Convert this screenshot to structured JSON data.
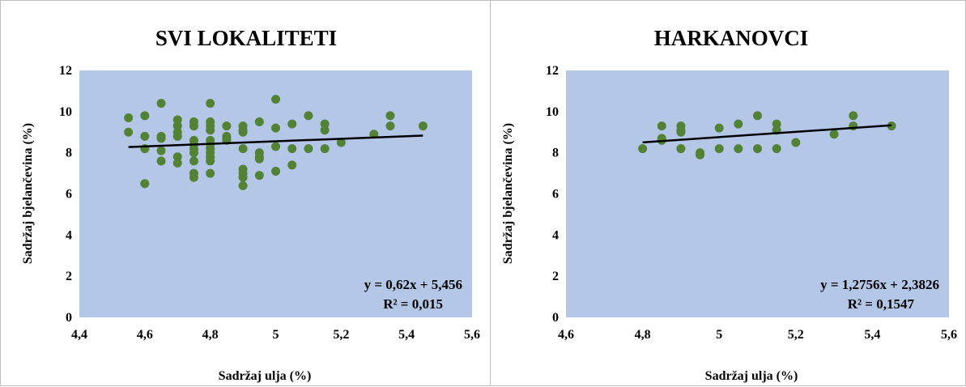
{
  "colors": {
    "plot_bg": "#b4c7e7",
    "point": "#538135",
    "trendline": "#000000"
  },
  "chart_data": [
    {
      "type": "scatter",
      "title": "SVI LOKALITETI",
      "xlabel": "Sadržaj ulja (%)",
      "ylabel": "Sadržaj bjelančevina (%)",
      "xlim": [
        4.4,
        5.6
      ],
      "ylim": [
        0,
        12
      ],
      "xticks": [
        "4,4",
        "4,6",
        "4,8",
        "5",
        "5,2",
        "5,4",
        "5,6"
      ],
      "yticks": [
        "0",
        "2",
        "4",
        "6",
        "8",
        "10",
        "12"
      ],
      "grid": false,
      "trendline": {
        "slope": 0.62,
        "intercept": 5.456,
        "x_range": [
          4.55,
          5.45
        ]
      },
      "equation": "y = 0,62x + 5,456",
      "r2": "R² = 0,015",
      "points": [
        [
          4.55,
          9.7
        ],
        [
          4.55,
          9.0
        ],
        [
          4.6,
          9.8
        ],
        [
          4.6,
          8.8
        ],
        [
          4.6,
          8.2
        ],
        [
          4.6,
          6.5
        ],
        [
          4.65,
          10.4
        ],
        [
          4.65,
          8.8
        ],
        [
          4.65,
          8.7
        ],
        [
          4.65,
          8.1
        ],
        [
          4.65,
          7.6
        ],
        [
          4.7,
          9.6
        ],
        [
          4.7,
          9.3
        ],
        [
          4.7,
          9.0
        ],
        [
          4.7,
          8.8
        ],
        [
          4.7,
          7.8
        ],
        [
          4.7,
          7.5
        ],
        [
          4.75,
          9.5
        ],
        [
          4.75,
          9.3
        ],
        [
          4.75,
          8.6
        ],
        [
          4.75,
          8.4
        ],
        [
          4.75,
          8.2
        ],
        [
          4.75,
          8.0
        ],
        [
          4.75,
          7.6
        ],
        [
          4.75,
          7.0
        ],
        [
          4.75,
          6.8
        ],
        [
          4.8,
          10.4
        ],
        [
          4.8,
          9.5
        ],
        [
          4.8,
          9.3
        ],
        [
          4.8,
          9.1
        ],
        [
          4.8,
          8.6
        ],
        [
          4.8,
          8.4
        ],
        [
          4.8,
          8.2
        ],
        [
          4.8,
          8.0
        ],
        [
          4.8,
          7.8
        ],
        [
          4.8,
          7.6
        ],
        [
          4.8,
          7.0
        ],
        [
          4.85,
          9.3
        ],
        [
          4.85,
          8.8
        ],
        [
          4.85,
          8.7
        ],
        [
          4.85,
          8.6
        ],
        [
          4.9,
          9.3
        ],
        [
          4.9,
          9.1
        ],
        [
          4.9,
          9.0
        ],
        [
          4.9,
          8.2
        ],
        [
          4.9,
          7.2
        ],
        [
          4.9,
          7.0
        ],
        [
          4.9,
          6.8
        ],
        [
          4.9,
          6.4
        ],
        [
          4.95,
          9.5
        ],
        [
          4.95,
          8.0
        ],
        [
          4.95,
          7.8
        ],
        [
          4.95,
          7.7
        ],
        [
          4.95,
          6.9
        ],
        [
          5.0,
          10.6
        ],
        [
          5.0,
          9.2
        ],
        [
          5.0,
          8.3
        ],
        [
          5.0,
          7.1
        ],
        [
          5.05,
          9.4
        ],
        [
          5.05,
          8.2
        ],
        [
          5.05,
          7.4
        ],
        [
          5.1,
          9.8
        ],
        [
          5.1,
          8.2
        ],
        [
          5.15,
          9.4
        ],
        [
          5.15,
          9.1
        ],
        [
          5.15,
          8.2
        ],
        [
          5.2,
          8.5
        ],
        [
          5.3,
          8.9
        ],
        [
          5.35,
          9.8
        ],
        [
          5.35,
          9.3
        ],
        [
          5.45,
          9.3
        ]
      ]
    },
    {
      "type": "scatter",
      "title": "HARKANOVCI",
      "xlabel": "Sadržaj ulja (%)",
      "ylabel": "Sadržaj bjelančevina (%)",
      "xlim": [
        4.6,
        5.6
      ],
      "ylim": [
        0,
        12
      ],
      "xticks": [
        "4,6",
        "4,8",
        "5",
        "5,2",
        "5,4",
        "5,6"
      ],
      "yticks": [
        "0",
        "2",
        "4",
        "6",
        "8",
        "10",
        "12"
      ],
      "grid": false,
      "trendline": {
        "slope": 1.2756,
        "intercept": 2.3826,
        "x_range": [
          4.8,
          5.45
        ]
      },
      "equation": "y = 1,2756x + 2,3826",
      "r2": "R² = 0,1547",
      "points": [
        [
          4.8,
          8.2
        ],
        [
          4.85,
          9.3
        ],
        [
          4.85,
          8.7
        ],
        [
          4.85,
          8.6
        ],
        [
          4.9,
          9.3
        ],
        [
          4.9,
          9.1
        ],
        [
          4.9,
          9.0
        ],
        [
          4.9,
          8.2
        ],
        [
          4.95,
          8.0
        ],
        [
          4.95,
          7.9
        ],
        [
          5.0,
          9.2
        ],
        [
          5.0,
          8.2
        ],
        [
          5.05,
          9.4
        ],
        [
          5.05,
          8.2
        ],
        [
          5.1,
          9.8
        ],
        [
          5.1,
          8.2
        ],
        [
          5.15,
          9.4
        ],
        [
          5.15,
          9.1
        ],
        [
          5.15,
          8.2
        ],
        [
          5.2,
          8.5
        ],
        [
          5.3,
          8.9
        ],
        [
          5.35,
          9.8
        ],
        [
          5.35,
          9.3
        ],
        [
          5.45,
          9.3
        ]
      ]
    }
  ]
}
